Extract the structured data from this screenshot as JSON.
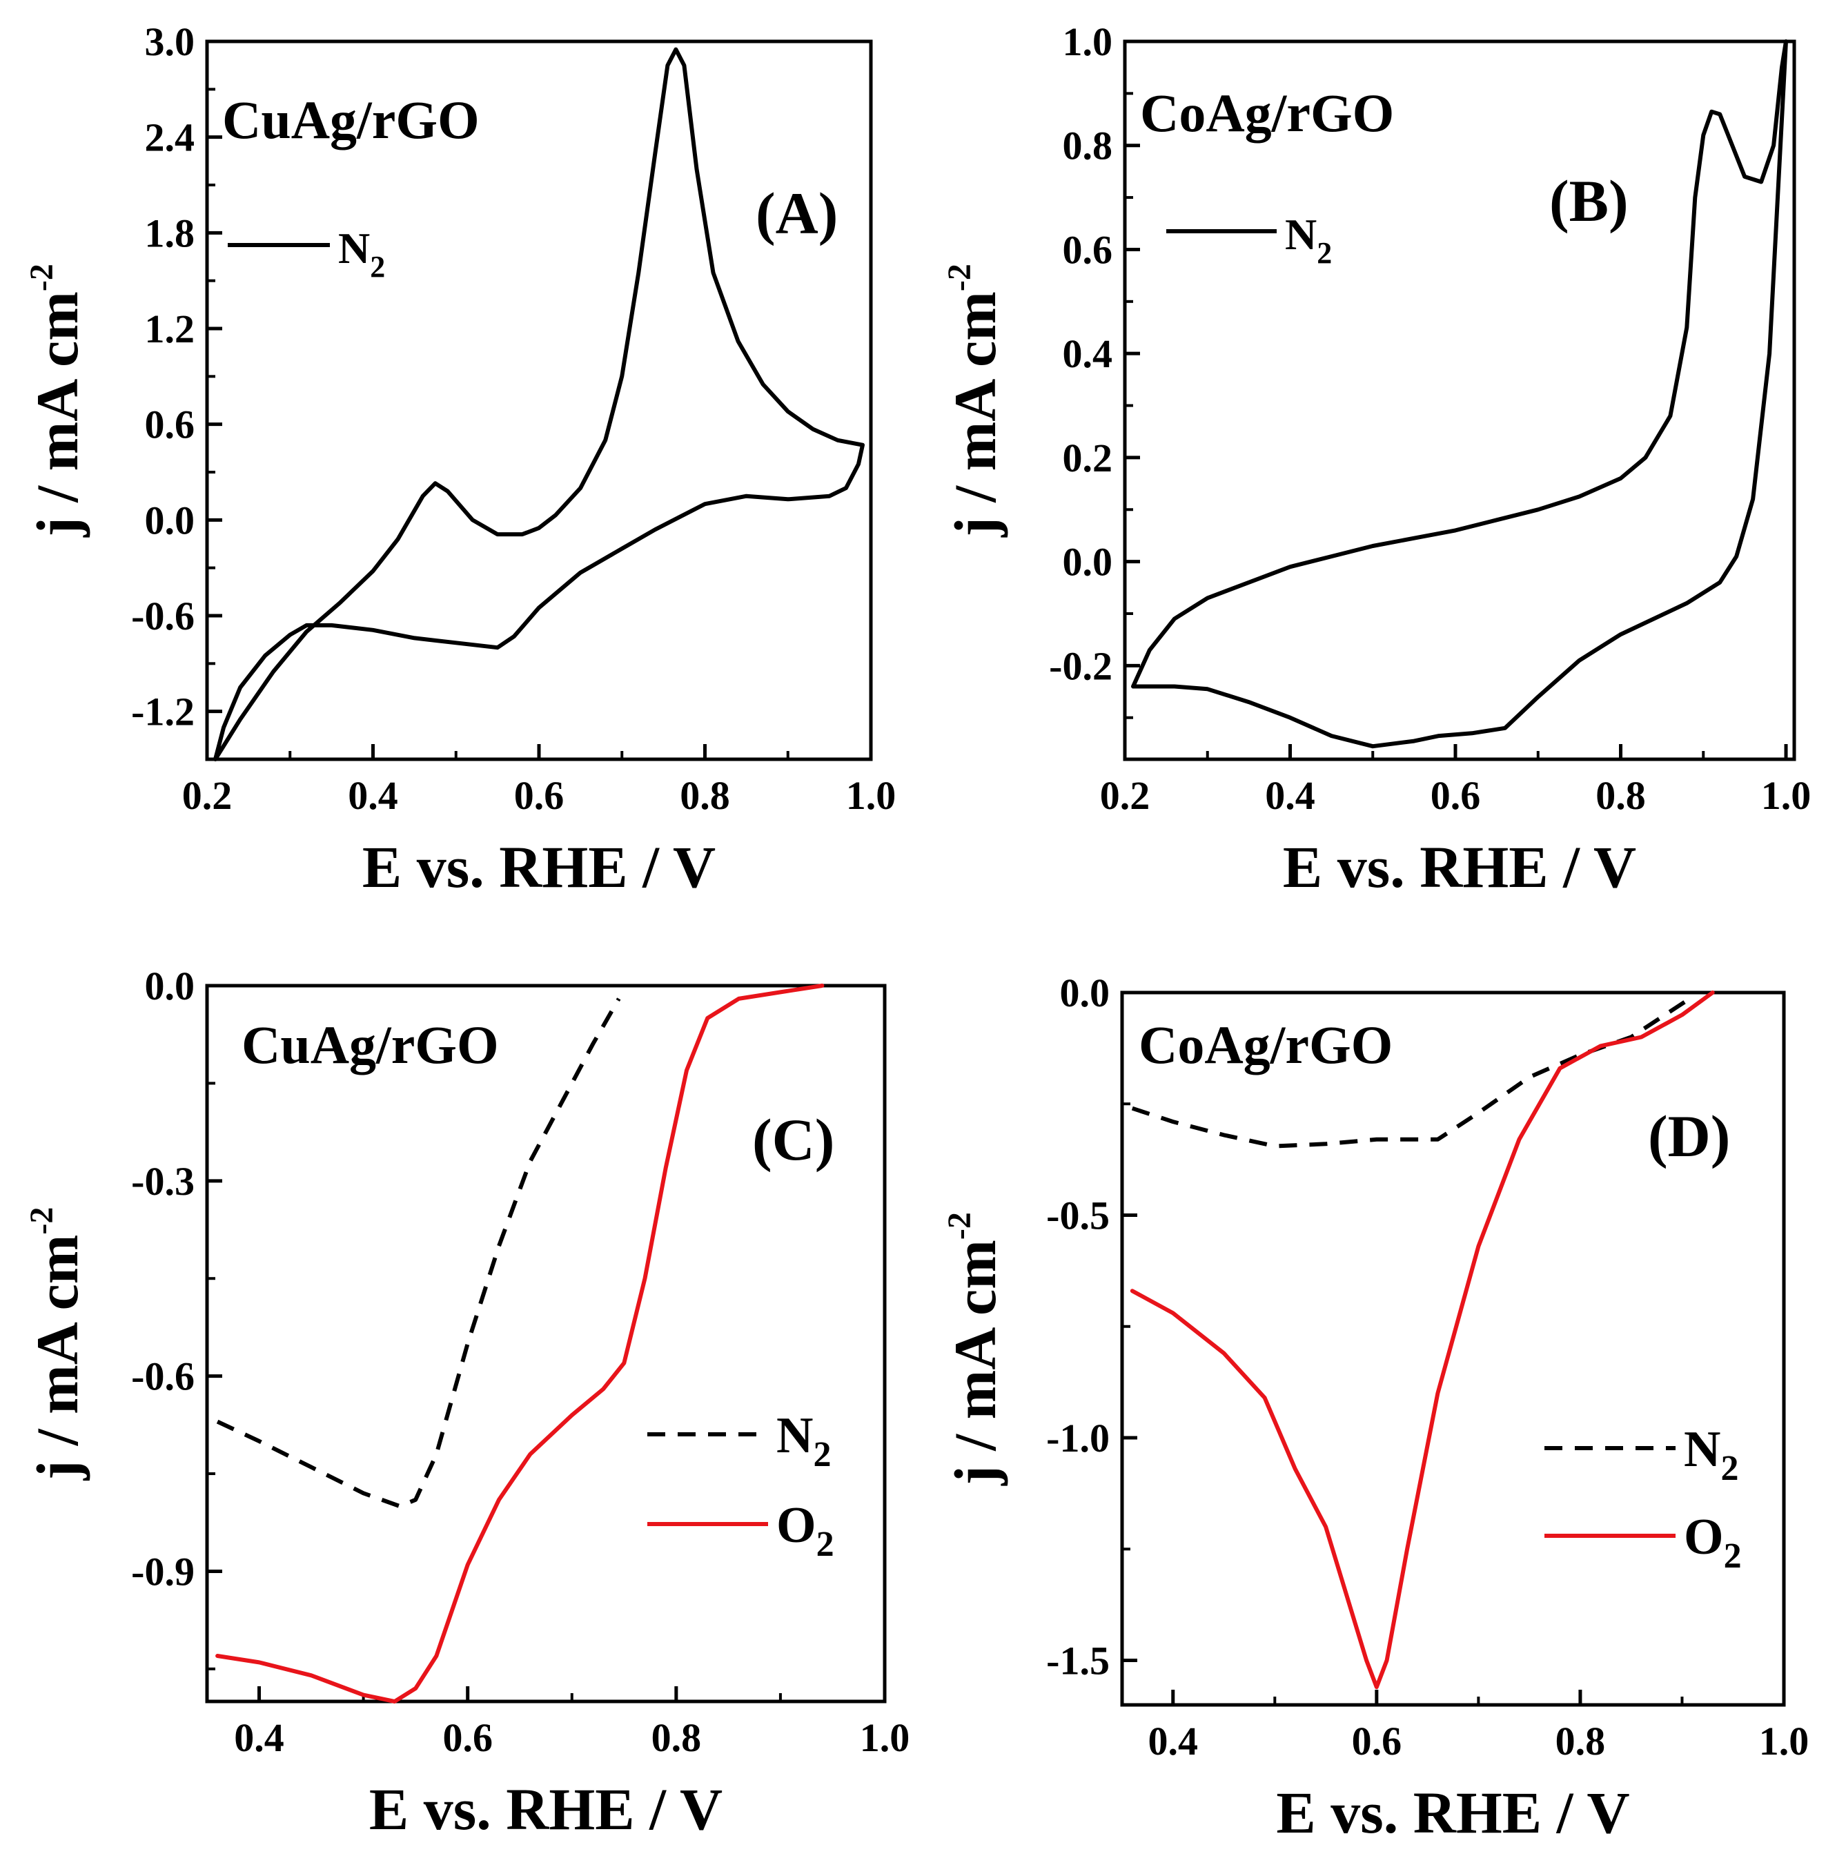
{
  "chart_data": [
    {
      "panel_label": "(A)",
      "sample": "CuAg/rGO",
      "type": "line",
      "xlabel": "E vs. RHE / V",
      "ylabel": "j / mA cm",
      "ylabel_sup": "-2",
      "xlim": [
        0.2,
        1.0
      ],
      "ylim": [
        -1.5,
        3.0
      ],
      "xticks": [
        "0.2",
        "0.4",
        "0.6",
        "0.8",
        "1.0"
      ],
      "xtick_values": [
        0.2,
        0.4,
        0.6,
        0.8,
        1.0
      ],
      "yticks": [
        "-1.2",
        "-0.6",
        "0.0",
        "0.6",
        "1.2",
        "1.8",
        "2.4",
        "3.0"
      ],
      "ytick_values": [
        -1.2,
        -0.6,
        0.0,
        0.6,
        1.2,
        1.8,
        2.4,
        3.0
      ],
      "legend": [
        {
          "label": "N",
          "sub": "2",
          "style": "solid",
          "color": "#000000"
        }
      ],
      "series": [
        {
          "name": "N2",
          "style": "solid",
          "color": "#000000",
          "points": [
            [
              0.21,
              -1.5
            ],
            [
              0.24,
              -1.25
            ],
            [
              0.28,
              -0.95
            ],
            [
              0.32,
              -0.7
            ],
            [
              0.36,
              -0.52
            ],
            [
              0.4,
              -0.32
            ],
            [
              0.43,
              -0.12
            ],
            [
              0.46,
              0.15
            ],
            [
              0.475,
              0.23
            ],
            [
              0.49,
              0.18
            ],
            [
              0.52,
              0.0
            ],
            [
              0.55,
              -0.09
            ],
            [
              0.58,
              -0.09
            ],
            [
              0.6,
              -0.05
            ],
            [
              0.62,
              0.03
            ],
            [
              0.65,
              0.2
            ],
            [
              0.68,
              0.5
            ],
            [
              0.7,
              0.9
            ],
            [
              0.72,
              1.55
            ],
            [
              0.74,
              2.3
            ],
            [
              0.755,
              2.85
            ],
            [
              0.765,
              2.95
            ],
            [
              0.775,
              2.85
            ],
            [
              0.79,
              2.2
            ],
            [
              0.81,
              1.55
            ],
            [
              0.84,
              1.12
            ],
            [
              0.87,
              0.85
            ],
            [
              0.9,
              0.68
            ],
            [
              0.93,
              0.57
            ],
            [
              0.96,
              0.5
            ],
            [
              0.99,
              0.47
            ],
            [
              0.985,
              0.35
            ],
            [
              0.97,
              0.2
            ],
            [
              0.95,
              0.15
            ],
            [
              0.9,
              0.13
            ],
            [
              0.85,
              0.15
            ],
            [
              0.8,
              0.1
            ],
            [
              0.77,
              0.02
            ],
            [
              0.74,
              -0.06
            ],
            [
              0.7,
              -0.18
            ],
            [
              0.65,
              -0.33
            ],
            [
              0.6,
              -0.55
            ],
            [
              0.57,
              -0.73
            ],
            [
              0.55,
              -0.8
            ],
            [
              0.5,
              -0.77
            ],
            [
              0.45,
              -0.74
            ],
            [
              0.4,
              -0.69
            ],
            [
              0.35,
              -0.66
            ],
            [
              0.32,
              -0.66
            ],
            [
              0.3,
              -0.72
            ],
            [
              0.27,
              -0.85
            ],
            [
              0.24,
              -1.05
            ],
            [
              0.22,
              -1.3
            ],
            [
              0.21,
              -1.5
            ]
          ]
        }
      ]
    },
    {
      "panel_label": "(B)",
      "sample": "CoAg/rGO",
      "type": "line",
      "xlabel": "E vs. RHE / V",
      "ylabel": "j / mA cm",
      "ylabel_sup": "-2",
      "xlim": [
        0.2,
        1.01
      ],
      "ylim": [
        -0.38,
        1.0
      ],
      "xticks": [
        "0.2",
        "0.4",
        "0.6",
        "0.8",
        "1.0"
      ],
      "xtick_values": [
        0.2,
        0.4,
        0.6,
        0.8,
        1.0
      ],
      "yticks": [
        "-0.2",
        "0.0",
        "0.2",
        "0.4",
        "0.6",
        "0.8",
        "1.0"
      ],
      "ytick_values": [
        -0.2,
        0.0,
        0.2,
        0.4,
        0.6,
        0.8,
        1.0
      ],
      "legend": [
        {
          "label": "N",
          "sub": "2",
          "style": "solid",
          "color": "#000000"
        }
      ],
      "series": [
        {
          "name": "N2",
          "style": "solid",
          "color": "#000000",
          "points": [
            [
              0.21,
              -0.24
            ],
            [
              0.23,
              -0.17
            ],
            [
              0.26,
              -0.11
            ],
            [
              0.3,
              -0.07
            ],
            [
              0.35,
              -0.04
            ],
            [
              0.4,
              -0.01
            ],
            [
              0.45,
              0.01
            ],
            [
              0.5,
              0.03
            ],
            [
              0.55,
              0.045
            ],
            [
              0.6,
              0.06
            ],
            [
              0.65,
              0.08
            ],
            [
              0.7,
              0.1
            ],
            [
              0.75,
              0.125
            ],
            [
              0.8,
              0.16
            ],
            [
              0.83,
              0.2
            ],
            [
              0.86,
              0.28
            ],
            [
              0.88,
              0.45
            ],
            [
              0.89,
              0.7
            ],
            [
              0.9,
              0.82
            ],
            [
              0.91,
              0.865
            ],
            [
              0.92,
              0.86
            ],
            [
              0.93,
              0.82
            ],
            [
              0.95,
              0.74
            ],
            [
              0.97,
              0.73
            ],
            [
              0.985,
              0.8
            ],
            [
              0.995,
              0.95
            ],
            [
              1.0,
              1.0
            ],
            [
              0.99,
              0.7
            ],
            [
              0.98,
              0.4
            ],
            [
              0.96,
              0.12
            ],
            [
              0.94,
              0.01
            ],
            [
              0.92,
              -0.04
            ],
            [
              0.88,
              -0.08
            ],
            [
              0.84,
              -0.11
            ],
            [
              0.8,
              -0.14
            ],
            [
              0.75,
              -0.19
            ],
            [
              0.7,
              -0.26
            ],
            [
              0.66,
              -0.32
            ],
            [
              0.62,
              -0.33
            ],
            [
              0.58,
              -0.335
            ],
            [
              0.55,
              -0.345
            ],
            [
              0.5,
              -0.355
            ],
            [
              0.45,
              -0.335
            ],
            [
              0.4,
              -0.3
            ],
            [
              0.35,
              -0.27
            ],
            [
              0.3,
              -0.245
            ],
            [
              0.26,
              -0.24
            ],
            [
              0.21,
              -0.24
            ]
          ]
        }
      ]
    },
    {
      "panel_label": "(C)",
      "sample": "CuAg/rGO",
      "type": "line",
      "xlabel": "E vs. RHE / V",
      "ylabel": "j / mA cm",
      "ylabel_sup": "-2",
      "xlim": [
        0.35,
        1.0
      ],
      "ylim": [
        -1.1,
        0.0
      ],
      "xticks": [
        "0.4",
        "0.6",
        "0.8",
        "1.0"
      ],
      "xtick_values": [
        0.4,
        0.6,
        0.8,
        1.0
      ],
      "yticks": [
        "-0.9",
        "-0.6",
        "-0.3",
        "0.0"
      ],
      "ytick_values": [
        -0.9,
        -0.6,
        -0.3,
        0.0
      ],
      "legend": [
        {
          "label": "N",
          "sub": "2",
          "style": "dashed",
          "color": "#000000"
        },
        {
          "label": "O",
          "sub": "2",
          "style": "solid",
          "color": "#e8141a"
        }
      ],
      "series": [
        {
          "name": "N2",
          "style": "dashed",
          "color": "#000000",
          "points": [
            [
              0.36,
              -0.67
            ],
            [
              0.4,
              -0.7
            ],
            [
              0.45,
              -0.74
            ],
            [
              0.5,
              -0.78
            ],
            [
              0.535,
              -0.8
            ],
            [
              0.55,
              -0.79
            ],
            [
              0.57,
              -0.72
            ],
            [
              0.6,
              -0.55
            ],
            [
              0.63,
              -0.4
            ],
            [
              0.66,
              -0.27
            ],
            [
              0.69,
              -0.18
            ],
            [
              0.72,
              -0.09
            ],
            [
              0.745,
              -0.02
            ]
          ]
        },
        {
          "name": "O2",
          "style": "solid",
          "color": "#e8141a",
          "points": [
            [
              0.36,
              -1.03
            ],
            [
              0.4,
              -1.04
            ],
            [
              0.45,
              -1.06
            ],
            [
              0.5,
              -1.09
            ],
            [
              0.53,
              -1.1
            ],
            [
              0.55,
              -1.08
            ],
            [
              0.57,
              -1.03
            ],
            [
              0.6,
              -0.89
            ],
            [
              0.63,
              -0.79
            ],
            [
              0.66,
              -0.72
            ],
            [
              0.7,
              -0.66
            ],
            [
              0.73,
              -0.62
            ],
            [
              0.75,
              -0.58
            ],
            [
              0.77,
              -0.45
            ],
            [
              0.79,
              -0.28
            ],
            [
              0.81,
              -0.13
            ],
            [
              0.83,
              -0.05
            ],
            [
              0.86,
              -0.02
            ],
            [
              0.9,
              -0.01
            ],
            [
              0.94,
              0.0
            ]
          ]
        }
      ]
    },
    {
      "panel_label": "(D)",
      "sample": "CoAg/rGO",
      "type": "line",
      "xlabel": "E vs. RHE / V",
      "ylabel": "j / mA cm",
      "ylabel_sup": "-2",
      "xlim": [
        0.35,
        1.0
      ],
      "ylim": [
        -1.6,
        0.0
      ],
      "xticks": [
        "0.4",
        "0.6",
        "0.8",
        "1.0"
      ],
      "xtick_values": [
        0.4,
        0.6,
        0.8,
        1.0
      ],
      "yticks": [
        "-1.5",
        "-1.0",
        "-0.5",
        "0.0"
      ],
      "ytick_values": [
        -1.5,
        -1.0,
        -0.5,
        0.0
      ],
      "legend": [
        {
          "label": "N",
          "sub": "2",
          "style": "dashed",
          "color": "#000000"
        },
        {
          "label": "O",
          "sub": "2",
          "style": "solid",
          "color": "#e8141a"
        }
      ],
      "series": [
        {
          "name": "N2",
          "style": "dashed",
          "color": "#000000",
          "points": [
            [
              0.36,
              -0.26
            ],
            [
              0.4,
              -0.29
            ],
            [
              0.45,
              -0.32
            ],
            [
              0.5,
              -0.345
            ],
            [
              0.55,
              -0.34
            ],
            [
              0.6,
              -0.33
            ],
            [
              0.66,
              -0.33
            ],
            [
              0.7,
              -0.27
            ],
            [
              0.75,
              -0.19
            ],
            [
              0.8,
              -0.14
            ],
            [
              0.85,
              -0.1
            ],
            [
              0.89,
              -0.04
            ],
            [
              0.91,
              -0.01
            ]
          ]
        },
        {
          "name": "O2",
          "style": "solid",
          "color": "#e8141a",
          "points": [
            [
              0.36,
              -0.67
            ],
            [
              0.4,
              -0.72
            ],
            [
              0.45,
              -0.81
            ],
            [
              0.49,
              -0.91
            ],
            [
              0.52,
              -1.07
            ],
            [
              0.55,
              -1.2
            ],
            [
              0.57,
              -1.35
            ],
            [
              0.59,
              -1.5
            ],
            [
              0.6,
              -1.56
            ],
            [
              0.61,
              -1.5
            ],
            [
              0.63,
              -1.25
            ],
            [
              0.66,
              -0.9
            ],
            [
              0.7,
              -0.57
            ],
            [
              0.74,
              -0.33
            ],
            [
              0.78,
              -0.17
            ],
            [
              0.82,
              -0.12
            ],
            [
              0.86,
              -0.1
            ],
            [
              0.9,
              -0.05
            ],
            [
              0.93,
              0.0
            ]
          ]
        }
      ]
    }
  ]
}
